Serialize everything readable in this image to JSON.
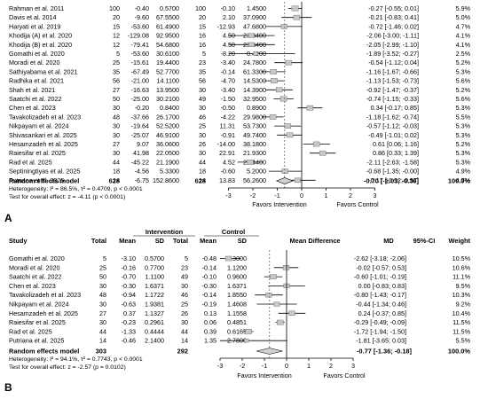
{
  "chart_data": [
    {
      "panel_label": "A",
      "type": "forest",
      "columns": [
        "Study",
        "Total",
        "Mean",
        "SD",
        "Total",
        "Mean",
        "SD"
      ],
      "studies": [
        {
          "study": "Rahman et al. 2011",
          "n1": "100",
          "m1": "-0.40",
          "sd1": "0.5700",
          "n2": "100",
          "m2": "-0.10",
          "sd2": "1.4500",
          "md": -0.27,
          "ci_text": "-0.27 [-0.55; 0.01]",
          "weight": "5.9%"
        },
        {
          "study": "Davis et al. 2014",
          "n1": "20",
          "m1": "-9.60",
          "sd1": "67.5500",
          "n2": "20",
          "m2": "2.10",
          "sd2": "37.0900",
          "md": -0.21,
          "ci_text": "-0.21 [-0.83; 0.41]",
          "weight": "5.0%"
        },
        {
          "study": "Haryati et al. 2019",
          "n1": "15",
          "m1": "-53.60",
          "sd1": "61.4900",
          "n2": "15",
          "m2": "-12.93",
          "sd2": "47.6800",
          "md": -0.72,
          "ci_text": "-0.72 [-1.46; 0.02]",
          "weight": "4.7%"
        },
        {
          "study": "Khodija (A) et al. 2020",
          "n1": "12",
          "m1": "-129.08",
          "sd1": "92.9500",
          "n2": "16",
          "m2": "4.50",
          "sd2": "23.3400",
          "md": -2.06,
          "ci_text": "-2.06 [-3.00; -1.11]",
          "weight": "4.1%"
        },
        {
          "study": "Khodija (B) et al. 2020",
          "n1": "12",
          "m1": "-79.41",
          "sd1": "54.6800",
          "n2": "16",
          "m2": "4.50",
          "sd2": "23.3400",
          "md": -2.05,
          "ci_text": "-2.05 [-2.99; -1.10]",
          "weight": "4.1%"
        },
        {
          "study": "Gomathi et al. 2020",
          "n1": "5",
          "m1": "-53.60",
          "sd1": "30.6100",
          "n2": "5",
          "m2": "-8.20",
          "sd2": "0.4200",
          "md": -1.89,
          "ci_text": "-1.89 [-3.52; -0.27]",
          "weight": "2.5%"
        },
        {
          "study": "Moradi et al. 2020",
          "n1": "25",
          "m1": "-15.61",
          "sd1": "19.4400",
          "n2": "23",
          "m2": "-3.40",
          "sd2": "24.7800",
          "md": -0.54,
          "ci_text": "-0.54 [-1.12; 0.04]",
          "weight": "5.2%"
        },
        {
          "study": "Sathiyabama et al. 2021",
          "n1": "35",
          "m1": "-67.49",
          "sd1": "52.7700",
          "n2": "35",
          "m2": "-0.14",
          "sd2": "61.3300",
          "md": -1.16,
          "ci_text": "-1.16 [-1.67; -0.66]",
          "weight": "5.3%"
        },
        {
          "study": "Radhika et al. 2021",
          "n1": "56",
          "m1": "-21.00",
          "sd1": "14.1100",
          "n2": "56",
          "m2": "-4.70",
          "sd2": "14.5300",
          "md": -1.13,
          "ci_text": "-1.13 [-1.53; -0.73]",
          "weight": "5.6%"
        },
        {
          "study": "Shah et al. 2021",
          "n1": "27",
          "m1": "-16.63",
          "sd1": "13.9500",
          "n2": "30",
          "m2": "-3.40",
          "sd2": "14.3900",
          "md": -0.92,
          "ci_text": "-0.92 [-1.47; -0.37]",
          "weight": "5.2%"
        },
        {
          "study": "Saatchi et al. 2022",
          "n1": "50",
          "m1": "-25.00",
          "sd1": "30.2100",
          "n2": "49",
          "m2": "-1.50",
          "sd2": "32.9500",
          "md": -0.74,
          "ci_text": "-0.74 [-1.15; -0.33]",
          "weight": "5.6%"
        },
        {
          "study": "Chen et al. 2023",
          "n1": "30",
          "m1": "-0.20",
          "sd1": "0.8400",
          "n2": "30",
          "m2": "-0.50",
          "sd2": "0.8900",
          "md": 0.34,
          "ci_text": "0.34 [-0.17; 0.85]",
          "weight": "5.3%"
        },
        {
          "study": "Tavakolizadeh et al. 2023",
          "n1": "48",
          "m1": "-37.66",
          "sd1": "26.1700",
          "n2": "46",
          "m2": "-4.22",
          "sd2": "29.9800",
          "md": -1.18,
          "ci_text": "-1.18 [-1.62; -0.74]",
          "weight": "5.5%"
        },
        {
          "study": "Nikpayam et al. 2024",
          "n1": "30",
          "m1": "-19.64",
          "sd1": "52.5200",
          "n2": "25",
          "m2": "11.31",
          "sd2": "53.7300",
          "md": -0.57,
          "ci_text": "-0.57 [-1.12; -0.03]",
          "weight": "5.3%"
        },
        {
          "study": "Shivasankari et al. 2025",
          "n1": "30",
          "m1": "-25.07",
          "sd1": "46.9100",
          "n2": "30",
          "m2": "-0.91",
          "sd2": "49.7400",
          "md": -0.49,
          "ci_text": "-0.49 [-1.01; 0.02]",
          "weight": "5.3%"
        },
        {
          "study": "Hesamzadeh et al. 2025",
          "n1": "27",
          "m1": "9.07",
          "sd1": "36.0600",
          "n2": "26",
          "m2": "-14.00",
          "sd2": "38.1800",
          "md": 0.61,
          "ci_text": "0.61 [0.06; 1.16]",
          "weight": "5.2%"
        },
        {
          "study": "Raiesifar et al. 2025",
          "n1": "30",
          "m1": "41.98",
          "sd1": "22.0500",
          "n2": "30",
          "m2": "22.91",
          "sd2": "21.9300",
          "md": 0.86,
          "ci_text": "0.86 [0.33; 1.39]",
          "weight": "5.3%"
        },
        {
          "study": "Rad et al. 2025",
          "n1": "44",
          "m1": "-45.22",
          "sd1": "21.1900",
          "n2": "44",
          "m2": "4.52",
          "sd2": "25.4400",
          "md": -2.11,
          "ci_text": "-2.11 [-2.63; -1.58]",
          "weight": "5.3%"
        },
        {
          "study": "Septiningtiyas et al. 2025",
          "n1": "18",
          "m1": "-4.56",
          "sd1": "5.3300",
          "n2": "18",
          "m2": "-0.60",
          "sd2": "5.2000",
          "md": -0.68,
          "ci_text": "-0.68 [-1.35; -0.00]",
          "weight": "4.9%"
        },
        {
          "study": "Putriana et al. 2025",
          "n1": "14",
          "m1": "-6.75",
          "sd1": "152.8600",
          "n2": "14",
          "m2": "13.83",
          "sd2": "56.2600",
          "md": -0.17,
          "ci_text": "-0.17 [-0.92; 0.57]",
          "weight": "4.7%"
        }
      ],
      "pooled": {
        "label": "Random effects model",
        "n1": "628",
        "n2": "628",
        "md": -0.7,
        "lower": -1.03,
        "upper": -0.36,
        "ci_text": "-0.70 [-1.03; -0.36]",
        "weight": "100.0%"
      },
      "heterogeneity": "Heterogeneity: I² = 86.5%, τ² = 0.4709, p < 0.0001",
      "overall_test": "Test for overall effect: z = -4.11 (p < 0.0001)",
      "x_ticks": [
        -3,
        -2,
        -1,
        0,
        1,
        2,
        3
      ],
      "xlim": [
        -3,
        3
      ],
      "favors_left": "Favors Intervention",
      "favors_right": "Favors Control"
    },
    {
      "panel_label": "B",
      "type": "forest",
      "group_headers": [
        "Intervention",
        "Control"
      ],
      "header": {
        "study": "Study",
        "total": "Total",
        "mean": "Mean",
        "sd": "SD",
        "mean_diff": "Mean Difference",
        "md": "MD",
        "ci": "95%-CI",
        "weight": "Weight"
      },
      "studies": [
        {
          "study": "Gomathi et al. 2020",
          "n1": "5",
          "m1": "-3.10",
          "sd1": "0.5700",
          "n2": "5",
          "m2": "-0.48",
          "sd2": "0.3000",
          "md": -2.62,
          "ci_text": "-2.62 [-3.18; -2.06]",
          "weight": "10.5%"
        },
        {
          "study": "Moradi et al. 2020",
          "n1": "25",
          "m1": "-0.16",
          "sd1": "0.7700",
          "n2": "23",
          "m2": "-0.14",
          "sd2": "1.1200",
          "md": -0.02,
          "ci_text": "-0.02 [-0.57; 0.53]",
          "weight": "10.6%"
        },
        {
          "study": "Saatchi et al. 2022",
          "n1": "50",
          "m1": "-0.70",
          "sd1": "1.1100",
          "n2": "49",
          "m2": "-0.10",
          "sd2": "0.9600",
          "md": -0.6,
          "ci_text": "-0.60 [-1.01; -0.19]",
          "weight": "11.1%"
        },
        {
          "study": "Chen et al. 2023",
          "n1": "30",
          "m1": "-0.30",
          "sd1": "1.6371",
          "n2": "30",
          "m2": "-0.30",
          "sd2": "1.6371",
          "md": 0.0,
          "ci_text": "0.00 [-0.83; 0.83]",
          "weight": "9.5%"
        },
        {
          "study": "Tavakolizadeh et al. 2023",
          "n1": "48",
          "m1": "-0.94",
          "sd1": "1.1722",
          "n2": "46",
          "m2": "-0.14",
          "sd2": "1.8550",
          "md": -0.8,
          "ci_text": "-0.80 [-1.43; -0.17]",
          "weight": "10.3%"
        },
        {
          "study": "Nikpayam et al. 2024",
          "n1": "30",
          "m1": "-0.63",
          "sd1": "1.9381",
          "n2": "25",
          "m2": "-0.19",
          "sd2": "1.4608",
          "md": -0.44,
          "ci_text": "-0.44 [-1.34; 0.46]",
          "weight": "9.2%"
        },
        {
          "study": "Hesamzadeh et al. 2025",
          "n1": "27",
          "m1": "0.37",
          "sd1": "1.1327",
          "n2": "26",
          "m2": "0.13",
          "sd2": "1.1558",
          "md": 0.24,
          "ci_text": "0.24 [-0.37; 0.85]",
          "weight": "10.4%"
        },
        {
          "study": "Raiesifar et al. 2025",
          "n1": "30",
          "m1": "-0.23",
          "sd1": "0.2961",
          "n2": "30",
          "m2": "0.06",
          "sd2": "0.4851",
          "md": -0.29,
          "ci_text": "-0.29 [-0.49; -0.09]",
          "weight": "11.5%"
        },
        {
          "study": "Rad et al. 2025",
          "n1": "44",
          "m1": "-1.33",
          "sd1": "0.4444",
          "n2": "44",
          "m2": "0.39",
          "sd2": "0.6165",
          "md": -1.72,
          "ci_text": "-1.72 [-1.94; -1.50]",
          "weight": "11.5%"
        },
        {
          "study": "Putriana et al. 2025",
          "n1": "14",
          "m1": "-0.46",
          "sd1": "2.1400",
          "n2": "14",
          "m2": "1.35",
          "sd2": "2.7800",
          "md": -1.81,
          "ci_text": "-1.81 [-3.65; 0.03]",
          "weight": "5.5%"
        }
      ],
      "pooled": {
        "label": "Random effects model",
        "n1": "303",
        "n2": "292",
        "md": -0.77,
        "lower": -1.36,
        "upper": -0.18,
        "ci_text": "-0.77 [-1.36; -0.18]",
        "weight": "100.0%"
      },
      "heterogeneity": "Heterogeneity: I² = 94.1%, τ² = 0.7743, p < 0.0001",
      "overall_test": "Test for overall effect: z = -2.57 (p = 0.0102)",
      "x_ticks": [
        -3,
        -2,
        -1,
        0,
        1,
        2,
        3
      ],
      "xlim": [
        -3,
        3
      ],
      "favors_left": "Favors Intervention",
      "favors_right": "Favors Control"
    }
  ]
}
